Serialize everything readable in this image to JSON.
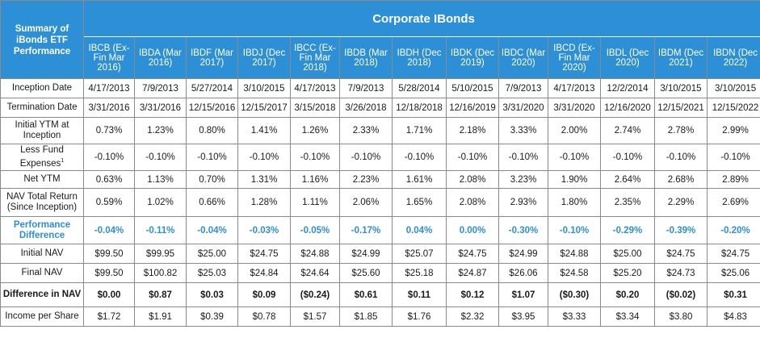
{
  "summary_label": "Summary of iBonds ETF Performance",
  "group_title": "Corporate IBonds",
  "columns": [
    "IBCB (Ex-Fin Mar 2016)",
    "IBDA (Mar 2016)",
    "IBDF (Mar 2017)",
    "IBDJ (Dec 2017)",
    "IBCC (Ex-Fin Mar 2018)",
    "IBDB (Mar 2018)",
    "IBDH (Dec 2018)",
    "IBDK (Dec 2019)",
    "IBDC (Mar 2020)",
    "IBCD (Ex-Fin Mar 2020)",
    "IBDL (Dec 2020)",
    "IBDM (Dec 2021)",
    "IBDN (Dec 2022)"
  ],
  "rows": [
    {
      "label": "Inception Date",
      "values": [
        "4/17/2013",
        "7/9/2013",
        "5/27/2014",
        "3/10/2015",
        "4/17/2013",
        "7/9/2013",
        "5/28/2014",
        "5/10/2015",
        "7/9/2013",
        "4/17/2013",
        "12/2/2014",
        "3/10/2015",
        "3/10/2015"
      ]
    },
    {
      "label": "Termination Date",
      "values": [
        "3/31/2016",
        "3/31/2016",
        "12/15/2016",
        "12/15/2017",
        "3/15/2018",
        "3/26/2018",
        "12/18/2018",
        "12/16/2019",
        "3/31/2020",
        "3/31/2020",
        "12/16/2020",
        "12/15/2021",
        "12/15/2022"
      ]
    },
    {
      "label": "Initial YTM at Inception",
      "values": [
        "0.73%",
        "1.23%",
        "0.80%",
        "1.41%",
        "1.26%",
        "2.33%",
        "1.71%",
        "2.18%",
        "3.33%",
        "2.00%",
        "2.74%",
        "2.78%",
        "2.99%"
      ]
    },
    {
      "label": "Less Fund Expenses",
      "sup": "1",
      "values": [
        "-0.10%",
        "-0.10%",
        "-0.10%",
        "-0.10%",
        "-0.10%",
        "-0.10%",
        "-0.10%",
        "-0.10%",
        "-0.10%",
        "-0.10%",
        "-0.10%",
        "-0.10%",
        "-0.10%"
      ]
    },
    {
      "label": "Net YTM",
      "values": [
        "0.63%",
        "1.13%",
        "0.70%",
        "1.31%",
        "1.16%",
        "2.23%",
        "1.61%",
        "2.08%",
        "3.23%",
        "1.90%",
        "2.64%",
        "2.68%",
        "2.89%"
      ]
    },
    {
      "label": "NAV Total Return (Since Inception)",
      "values": [
        "0.59%",
        "1.02%",
        "0.66%",
        "1.28%",
        "1.11%",
        "2.06%",
        "1.65%",
        "2.08%",
        "2.93%",
        "1.80%",
        "2.35%",
        "2.29%",
        "2.69%"
      ]
    },
    {
      "label": "Performance Difference",
      "values": [
        "-0.04%",
        "-0.11%",
        "-0.04%",
        "-0.03%",
        "-0.05%",
        "-0.17%",
        "0.04%",
        "0.00%",
        "-0.30%",
        "-0.10%",
        "-0.29%",
        "-0.39%",
        "-0.20%"
      ]
    },
    {
      "label": "Initial NAV",
      "values": [
        "$99.50",
        "$99.95",
        "$25.00",
        "$24.75",
        "$24.88",
        "$24.99",
        "$25.07",
        "$24.75",
        "$24.99",
        "$24.88",
        "$25.00",
        "$24.75",
        "$24.75"
      ]
    },
    {
      "label": "Final NAV",
      "values": [
        "$99.50",
        "$100.82",
        "$25.03",
        "$24.84",
        "$24.64",
        "$25.60",
        "$25.18",
        "$24.87",
        "$26.06",
        "$24.58",
        "$25.20",
        "$24.73",
        "$25.06"
      ]
    },
    {
      "label": "Difference in NAV",
      "values": [
        "$0.00",
        "$0.87",
        "$0.03",
        "$0.09",
        "($0.24)",
        "$0.61",
        "$0.11",
        "$0.12",
        "$1.07",
        "($0.30)",
        "$0.20",
        "($0.02)",
        "$0.31"
      ]
    },
    {
      "label": "Income per Share",
      "values": [
        "$1.72",
        "$1.91",
        "$0.39",
        "$0.78",
        "$1.57",
        "$1.85",
        "$1.76",
        "$2.32",
        "$3.95",
        "$3.33",
        "$3.34",
        "$3.80",
        "$4.83"
      ]
    }
  ],
  "colors": {
    "header_bg": "#2d8fd5",
    "header_text": "#ffffff",
    "highlight_text": "#2d8fd5",
    "border": "#8a8a8a"
  }
}
